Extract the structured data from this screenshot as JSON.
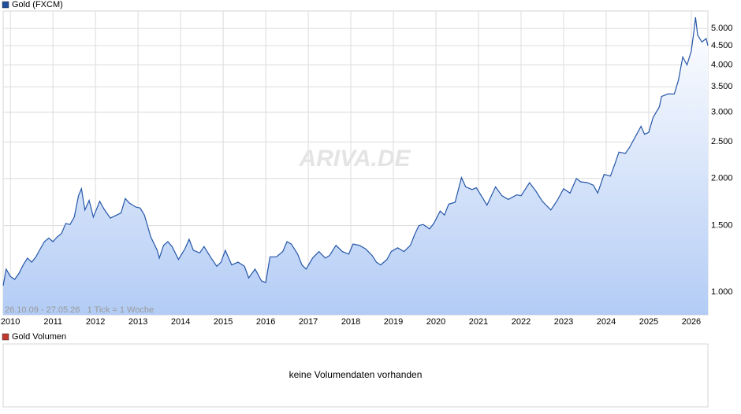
{
  "chart_data": {
    "type": "area-line",
    "legend_label": "Gold (FXCM)",
    "legend_color": "#1f4e9c",
    "watermark": "ARIVA.DE",
    "note": "26.10.09 - 27.05.26   1 Tick = 1 Woche",
    "log_scale": true,
    "grid": true,
    "xlim": [
      2009.83,
      2026.39
    ],
    "xticks": [
      2010,
      2011,
      2012,
      2013,
      2014,
      2015,
      2016,
      2017,
      2018,
      2019,
      2020,
      2021,
      2022,
      2023,
      2024,
      2025,
      2026
    ],
    "ylim": [
      870,
      5560
    ],
    "yticks": [
      {
        "value": 1000,
        "label": "1.000"
      },
      {
        "value": 1500,
        "label": "1.500"
      },
      {
        "value": 2000,
        "label": "2.000"
      },
      {
        "value": 2500,
        "label": "2.500"
      },
      {
        "value": 3000,
        "label": "3.000"
      },
      {
        "value": 3500,
        "label": "3.500"
      },
      {
        "value": 4000,
        "label": "4.000"
      },
      {
        "value": 4500,
        "label": "4.500"
      },
      {
        "value": 5000,
        "label": "5.000"
      }
    ],
    "x": [
      2009.83,
      2009.9,
      2010.0,
      2010.1,
      2010.2,
      2010.3,
      2010.4,
      2010.5,
      2010.6,
      2010.7,
      2010.8,
      2010.9,
      2011.0,
      2011.1,
      2011.2,
      2011.3,
      2011.4,
      2011.5,
      2011.6,
      2011.67,
      2011.75,
      2011.85,
      2011.95,
      2012.1,
      2012.2,
      2012.35,
      2012.5,
      2012.6,
      2012.7,
      2012.8,
      2012.95,
      2013.05,
      2013.15,
      2013.3,
      2013.45,
      2013.5,
      2013.6,
      2013.7,
      2013.8,
      2013.95,
      2014.1,
      2014.2,
      2014.3,
      2014.45,
      2014.55,
      2014.7,
      2014.85,
      2014.95,
      2015.05,
      2015.2,
      2015.35,
      2015.5,
      2015.6,
      2015.75,
      2015.9,
      2016.0,
      2016.1,
      2016.25,
      2016.4,
      2016.5,
      2016.6,
      2016.75,
      2016.85,
      2016.95,
      2017.1,
      2017.25,
      2017.4,
      2017.5,
      2017.65,
      2017.8,
      2017.95,
      2018.05,
      2018.2,
      2018.35,
      2018.5,
      2018.6,
      2018.7,
      2018.85,
      2018.95,
      2019.1,
      2019.25,
      2019.4,
      2019.5,
      2019.6,
      2019.7,
      2019.85,
      2019.95,
      2020.1,
      2020.2,
      2020.3,
      2020.45,
      2020.6,
      2020.7,
      2020.85,
      2020.95,
      2021.2,
      2021.4,
      2021.55,
      2021.7,
      2021.9,
      2022.0,
      2022.2,
      2022.35,
      2022.5,
      2022.7,
      2022.85,
      2023.0,
      2023.15,
      2023.3,
      2023.4,
      2023.55,
      2023.7,
      2023.8,
      2023.95,
      2024.1,
      2024.2,
      2024.3,
      2024.45,
      2024.55,
      2024.7,
      2024.82,
      2024.9,
      2025.0,
      2025.1,
      2025.25,
      2025.3,
      2025.45,
      2025.6,
      2025.7,
      2025.8,
      2025.9,
      2026.0,
      2026.06,
      2026.1,
      2026.15,
      2026.25,
      2026.35,
      2026.39
    ],
    "series": [
      {
        "name": "Gold (FXCM)",
        "color": "#2456a8",
        "values": [
          1040,
          1150,
          1100,
          1080,
          1120,
          1180,
          1230,
          1200,
          1240,
          1300,
          1360,
          1390,
          1360,
          1400,
          1430,
          1520,
          1510,
          1580,
          1800,
          1880,
          1650,
          1750,
          1580,
          1740,
          1660,
          1570,
          1600,
          1620,
          1770,
          1720,
          1680,
          1670,
          1600,
          1400,
          1290,
          1230,
          1330,
          1360,
          1320,
          1220,
          1300,
          1380,
          1290,
          1270,
          1320,
          1240,
          1170,
          1200,
          1290,
          1180,
          1200,
          1170,
          1090,
          1150,
          1070,
          1060,
          1240,
          1240,
          1280,
          1360,
          1340,
          1260,
          1180,
          1150,
          1230,
          1280,
          1230,
          1250,
          1330,
          1280,
          1260,
          1340,
          1330,
          1300,
          1250,
          1200,
          1180,
          1220,
          1280,
          1310,
          1280,
          1330,
          1420,
          1500,
          1510,
          1470,
          1520,
          1640,
          1600,
          1710,
          1730,
          2010,
          1900,
          1870,
          1890,
          1700,
          1900,
          1800,
          1760,
          1810,
          1800,
          1950,
          1850,
          1740,
          1650,
          1750,
          1880,
          1830,
          2000,
          1960,
          1950,
          1920,
          1830,
          2050,
          2030,
          2180,
          2350,
          2330,
          2420,
          2600,
          2750,
          2620,
          2650,
          2900,
          3100,
          3300,
          3350,
          3350,
          3650,
          4200,
          4000,
          4350,
          4900,
          5350,
          4800,
          4600,
          4700,
          4500
        ]
      }
    ]
  },
  "volume_panel": {
    "legend_label": "Gold Volumen",
    "legend_color": "#c0392b",
    "message": "keine Volumendaten vorhanden"
  }
}
